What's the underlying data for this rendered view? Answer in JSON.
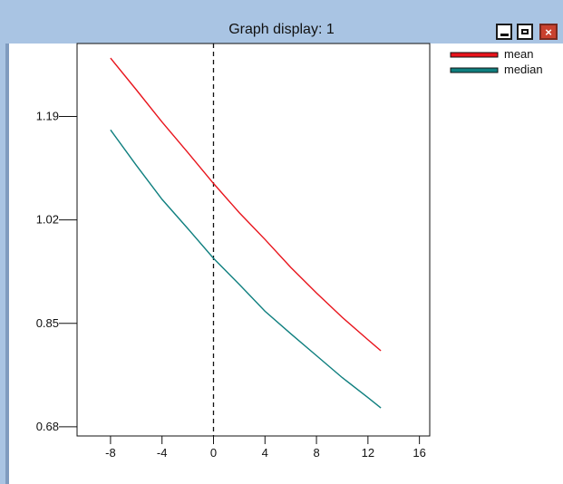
{
  "window": {
    "title": "Graph display: 1",
    "minimize_icon": "minimize-icon",
    "maximize_icon": "maximize-icon",
    "close_label": "×"
  },
  "colors": {
    "mean": "#e8141c",
    "median": "#0f7f7f",
    "titlebar": "#a9c4e3"
  },
  "chart_data": {
    "type": "line",
    "xticks": [
      "-8",
      "-4",
      "0",
      "4",
      "8",
      "12",
      "16"
    ],
    "yticks": [
      "0.68",
      "0.85",
      "1.02",
      "1.19"
    ],
    "xlim": [
      -10.6,
      16.8
    ],
    "ylim": [
      0.665,
      1.31
    ],
    "vline_x": 0,
    "series": [
      {
        "name": "mean",
        "x": [
          -8,
          -6,
          -4,
          -2,
          0,
          2,
          4,
          6,
          8,
          10,
          12,
          13
        ],
        "y": [
          1.286,
          1.234,
          1.181,
          1.131,
          1.08,
          1.032,
          0.988,
          0.942,
          0.9,
          0.86,
          0.823,
          0.805
        ]
      },
      {
        "name": "median",
        "x": [
          -8,
          -6,
          -4,
          -2,
          0,
          2,
          4,
          6,
          8,
          10,
          12,
          13
        ],
        "y": [
          1.168,
          1.11,
          1.054,
          1.006,
          0.957,
          0.914,
          0.87,
          0.833,
          0.797,
          0.761,
          0.728,
          0.711
        ]
      }
    ],
    "legend": "top-right",
    "grid": false
  }
}
